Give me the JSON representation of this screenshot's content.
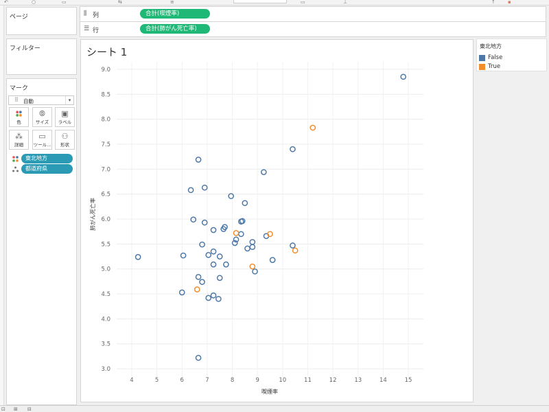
{
  "shelves": {
    "columns": {
      "label": "列",
      "pill": "合計(喫煙率)"
    },
    "rows": {
      "label": "行",
      "pill": "合計(肺がん死亡率)"
    }
  },
  "cards": {
    "pages": "ページ",
    "filters": "フィルター",
    "marks": "マーク"
  },
  "marks": {
    "type_value": "自動",
    "buttons": [
      "色",
      "サイズ",
      "ラベル",
      "詳細",
      "ツール...",
      "形状"
    ],
    "fields": [
      {
        "label": "東北地方",
        "icon": "color-dots-icon"
      },
      {
        "label": "都道府県",
        "icon": "detail-dots-icon"
      }
    ]
  },
  "sheet": {
    "title": "シート 1"
  },
  "legend": {
    "title": "東北地方",
    "items": [
      {
        "label": "False",
        "color": "#4e79a7"
      },
      {
        "label": "True",
        "color": "#f28e2b"
      }
    ]
  },
  "chart_data": {
    "type": "scatter",
    "xlabel": "喫煙率",
    "ylabel": "肺がん死亡率",
    "xlim": [
      3.4,
      15.6
    ],
    "ylim": [
      2.85,
      9.15
    ],
    "x_ticks": [
      "4",
      "5",
      "6",
      "7",
      "8",
      "9",
      "10",
      "11",
      "12",
      "13",
      "14",
      "15"
    ],
    "y_ticks": [
      "3.0",
      "3.5",
      "4.0",
      "4.5",
      "5.0",
      "5.5",
      "6.0",
      "6.5",
      "7.0",
      "7.5",
      "8.0",
      "8.5",
      "9.0"
    ],
    "grid": true,
    "legend": "right",
    "series": [
      {
        "name": "False",
        "color": "#4e79a7",
        "points": [
          [
            14.8,
            8.85
          ],
          [
            10.4,
            7.4
          ],
          [
            6.65,
            7.19
          ],
          [
            9.25,
            6.94
          ],
          [
            6.9,
            6.63
          ],
          [
            6.35,
            6.58
          ],
          [
            7.95,
            6.46
          ],
          [
            8.5,
            6.32
          ],
          [
            6.45,
            5.99
          ],
          [
            6.9,
            5.93
          ],
          [
            8.4,
            5.96
          ],
          [
            8.35,
            5.95
          ],
          [
            7.7,
            5.84
          ],
          [
            7.25,
            5.78
          ],
          [
            7.65,
            5.8
          ],
          [
            8.35,
            5.7
          ],
          [
            8.15,
            5.59
          ],
          [
            8.1,
            5.52
          ],
          [
            9.35,
            5.66
          ],
          [
            8.8,
            5.54
          ],
          [
            6.8,
            5.49
          ],
          [
            8.6,
            5.41
          ],
          [
            10.4,
            5.47
          ],
          [
            8.8,
            5.44
          ],
          [
            7.25,
            5.35
          ],
          [
            7.05,
            5.28
          ],
          [
            6.05,
            5.27
          ],
          [
            7.5,
            5.25
          ],
          [
            4.25,
            5.24
          ],
          [
            9.6,
            5.18
          ],
          [
            7.25,
            5.09
          ],
          [
            7.75,
            5.09
          ],
          [
            8.9,
            4.95
          ],
          [
            6.65,
            4.84
          ],
          [
            7.5,
            4.82
          ],
          [
            6.8,
            4.74
          ],
          [
            6.0,
            4.53
          ],
          [
            7.25,
            4.47
          ],
          [
            7.05,
            4.42
          ],
          [
            7.45,
            4.4
          ],
          [
            6.65,
            3.22
          ]
        ]
      },
      {
        "name": "True",
        "color": "#f28e2b",
        "points": [
          [
            11.2,
            7.83
          ],
          [
            9.5,
            5.7
          ],
          [
            8.15,
            5.72
          ],
          [
            10.5,
            5.37
          ],
          [
            8.8,
            5.05
          ],
          [
            6.6,
            4.59
          ]
        ]
      }
    ]
  }
}
